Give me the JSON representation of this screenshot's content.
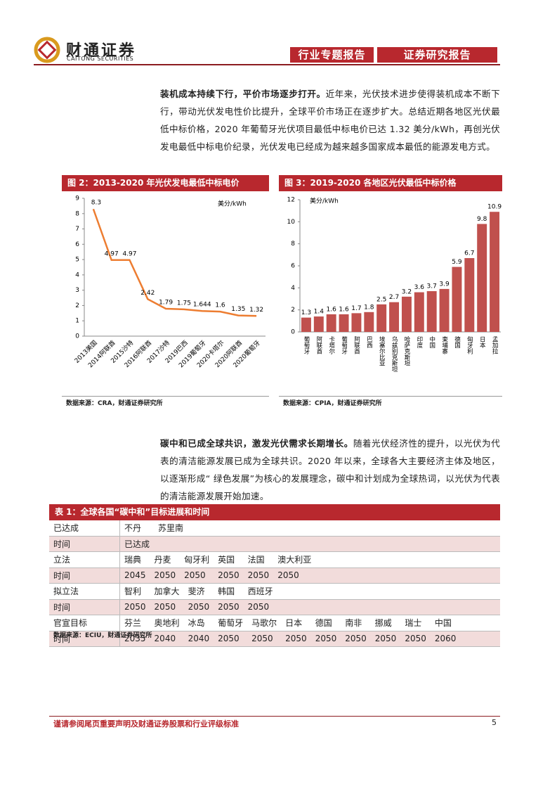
{
  "header": {
    "logo_name": "财通证券",
    "logo_name_en": "CAITONG SECURITIES",
    "tags": [
      "行业专题报告",
      "证券研究报告"
    ]
  },
  "para1": {
    "lead": "装机成本持续下行，平价市场逐步打开。",
    "text": "近年来，光伏技术进步使得装机成本不断下行，带动光伏发电性价比提升，全球平价市场正在逐步扩大。总结近期各地区光伏最低中标价格，2020 年葡萄牙光伏项目最低中标电价已达 1.32 美分/kWh，再创光伏发电最低中标电价纪录，光伏发电已经成为越来越多国家成本最低的能源发电方式。"
  },
  "chart_data": [
    {
      "type": "line",
      "title": "图 2：2013-2020 年光伏发电最低中标电价",
      "unit": "美分/kWh",
      "categories": [
        "2013美国",
        "2014阿联酋",
        "2015沙特",
        "2016阿联酋",
        "2017沙特",
        "2019巴西",
        "2019葡萄牙",
        "2020卡塔尔",
        "2020阿联酋",
        "2020葡萄牙"
      ],
      "values": [
        8.3,
        4.97,
        4.97,
        2.42,
        1.79,
        1.75,
        1.644,
        1.6,
        1.35,
        1.32
      ],
      "color": "#ed7d31",
      "ylim": [
        0,
        9
      ],
      "yticks": [
        0,
        1,
        2,
        3,
        4,
        5,
        6,
        7,
        8,
        9
      ],
      "source": "数据来源：CRA，财通证券研究所"
    },
    {
      "type": "bar",
      "title": "图 3：2019-2020 各地区光伏最低中标价格",
      "unit": "美分/kWh",
      "categories": [
        "葡萄牙",
        "阿联酋",
        "卡塔尔",
        "葡萄牙",
        "阿联酋",
        "巴西",
        "埃塞尔比亚",
        "乌兹别克斯坦",
        "哈萨克斯坦",
        "印度",
        "中国",
        "柬埔寨",
        "德国",
        "匈牙利",
        "日本",
        "孟加拉"
      ],
      "values": [
        1.3,
        1.4,
        1.6,
        1.6,
        1.7,
        1.8,
        2.5,
        2.7,
        3.2,
        3.6,
        3.7,
        3.9,
        5.9,
        6.7,
        9.8,
        10.9
      ],
      "color": "#c0504d",
      "ylim": [
        0,
        12
      ],
      "yticks": [
        0,
        2,
        4,
        6,
        8,
        10,
        12
      ],
      "source": "数据来源：CPIA，财通证券研究所"
    }
  ],
  "para2": {
    "lead": "碳中和已成全球共识，激发光伏需求长期增长。",
    "text": "随着光伏经济性的提升，以光伏为代表的清洁能源发展已成为全球共识。2020 年以来，全球各大主要经济主体及地区，以逐渐形成“ 绿色发展”为核心的发展理念，碳中和计划成为全球热词，以光伏为代表的清洁能源发展开始加速。"
  },
  "table": {
    "title": "表 1：全球各国“碳中和”目标进展和时间",
    "rows": [
      [
        "已达成",
        "不丹",
        "苏里南"
      ],
      [
        "时间",
        "已达成"
      ],
      [
        "立法",
        "瑞典",
        "丹麦",
        "匈牙利",
        "英国",
        "法国",
        "澳大利亚"
      ],
      [
        "时间",
        "2045",
        "2050",
        "2050",
        "2050",
        "2050",
        "2050"
      ],
      [
        "拟立法",
        "智利",
        "加拿大",
        "斐济",
        "韩国",
        "西班牙"
      ],
      [
        "时间",
        "2050",
        "2050",
        "2050",
        "2050",
        "2050"
      ],
      [
        "官宣目标",
        "芬兰",
        "奥地利",
        "冰岛",
        "葡萄牙",
        "马歌尔",
        "日本",
        "德国",
        "南非",
        "挪威",
        "瑞士",
        "中国"
      ],
      [
        "时间",
        "2035",
        "2040",
        "2040",
        "2050",
        "2050",
        "2050",
        "2050",
        "2050",
        "2050",
        "2050",
        "2060"
      ]
    ],
    "source": "数据来源：ECIU，财通证券研究所"
  },
  "footer": {
    "disclaimer": "谨请参阅尾页重要声明及财通证券股票和行业评级标准",
    "page": "5"
  }
}
